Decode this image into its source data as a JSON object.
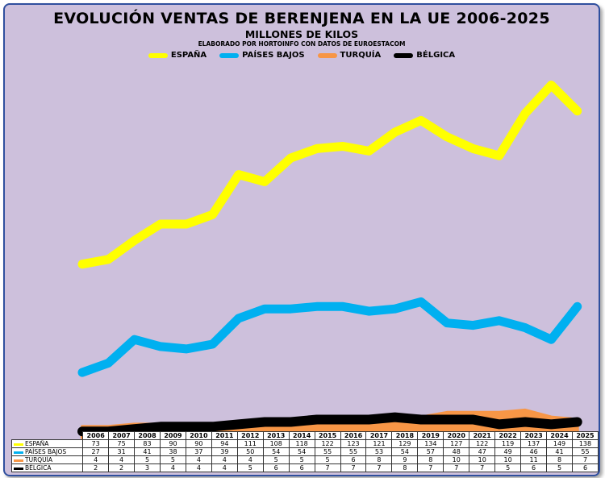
{
  "chart_data": {
    "type": "line",
    "title": "EVOLUCIÓN VENTAS DE BERENJENA EN LA UE 2006-2025",
    "subtitle": "MILLONES DE KILOS",
    "note": "ELABORADO POR HORTOINFO CON DATOS DE EUROESTACOM",
    "ylim": [
      0,
      155
    ],
    "x": [
      "2006",
      "2007",
      "2008",
      "2009",
      "2010",
      "2011",
      "2012",
      "2013",
      "2014",
      "2015",
      "2016",
      "2017",
      "2018",
      "2019",
      "2020",
      "2021",
      "2022",
      "2023",
      "2024",
      "2025"
    ],
    "series": [
      {
        "name": "ESPAÑA",
        "color": "#ffff00",
        "values": [
          73,
          75,
          83,
          90,
          90,
          94,
          111,
          108,
          118,
          122,
          123,
          121,
          129,
          134,
          127,
          122,
          119,
          137,
          149,
          138
        ]
      },
      {
        "name": "PAÍSES BAJOS",
        "color": "#00b0f0",
        "values": [
          27,
          31,
          41,
          38,
          37,
          39,
          50,
          54,
          54,
          55,
          55,
          53,
          54,
          57,
          48,
          47,
          49,
          46,
          41,
          55
        ]
      },
      {
        "name": "TURQUÍA",
        "color": "#f79646",
        "values": [
          4,
          4,
          5,
          5,
          4,
          4,
          4,
          5,
          5,
          5,
          6,
          8,
          9,
          8,
          10,
          10,
          10,
          11,
          8,
          7
        ]
      },
      {
        "name": "BÉLGICA",
        "color": "#000000",
        "values": [
          2,
          2,
          3,
          4,
          4,
          4,
          5,
          6,
          6,
          7,
          7,
          7,
          8,
          7,
          7,
          7,
          5,
          6,
          5,
          6
        ]
      }
    ]
  }
}
